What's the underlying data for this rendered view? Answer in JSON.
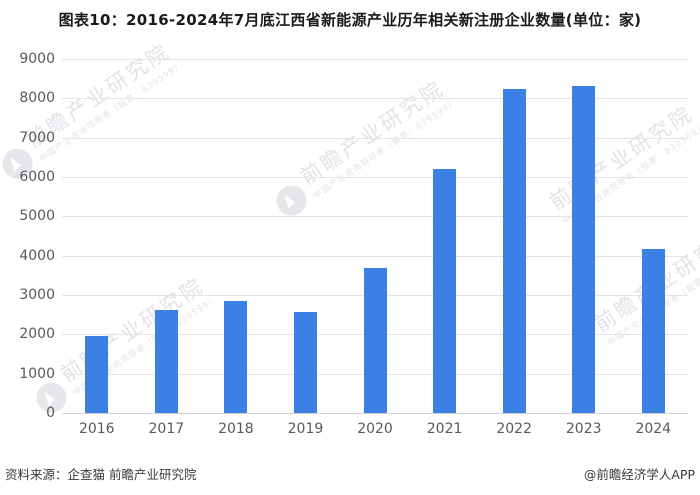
{
  "title": "图表10：2016-2024年7月底江西省新能源产业历年相关新注册企业数量(单位：家)",
  "chart_data": {
    "type": "bar",
    "title": "图表10：2016-2024年7月底江西省新能源产业历年相关新注册企业数量(单位：家)",
    "categories": [
      "2016",
      "2017",
      "2018",
      "2019",
      "2020",
      "2021",
      "2022",
      "2023",
      "2024"
    ],
    "values": [
      1960,
      2620,
      2860,
      2580,
      3690,
      6210,
      8250,
      8320,
      4170
    ],
    "xlabel": "",
    "ylabel": "",
    "unit": "家",
    "ylim": [
      0,
      9000
    ],
    "ytick_interval": 1000,
    "yticks": [
      0,
      1000,
      2000,
      3000,
      4000,
      5000,
      6000,
      7000,
      8000,
      9000
    ],
    "grid": true,
    "legend_position": "none",
    "bar_color": "#3b80e4"
  },
  "colors": {
    "bar": "#3b80e4",
    "gridline": "#e4e4e4",
    "axis_line": "#d2d2d2",
    "tick_label": "#595959",
    "title_text": "#1a1a1a",
    "footer_text": "#3a3a3a",
    "watermark": "#b2b2c2"
  },
  "footer": {
    "source": "资料来源：企查猫 前瞻产业研究院",
    "credit": "@前瞻经济学人APP"
  },
  "watermark": {
    "line1": "前瞻产业研究院",
    "line2": "中国产业咨询领导者（股票：839599）"
  }
}
